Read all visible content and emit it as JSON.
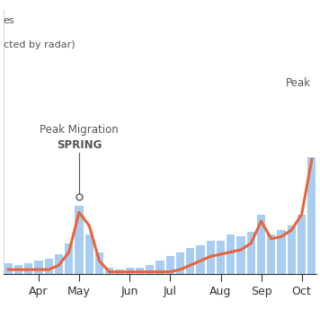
{
  "chart_data": {
    "type": "bar",
    "categories": [
      null,
      null,
      null,
      "Apr",
      null,
      null,
      null,
      "May",
      null,
      null,
      null,
      null,
      "Jun",
      null,
      null,
      null,
      "Jul",
      null,
      null,
      null,
      null,
      "Aug",
      null,
      null,
      null,
      "Sep",
      null,
      null,
      null,
      "Oct",
      null
    ],
    "series": [
      {
        "type": "bar",
        "color": "#a9cdf1",
        "values": [
          5,
          4,
          5,
          6,
          7,
          9,
          14,
          31,
          18,
          10,
          3,
          2,
          3,
          3,
          4,
          6,
          8,
          10,
          12,
          13,
          15,
          15,
          18,
          17,
          19,
          27,
          18,
          20,
          22,
          27,
          53
        ]
      },
      {
        "type": "line",
        "color": "#e8653c",
        "values": [
          2,
          2,
          2,
          2,
          2,
          4,
          10,
          28,
          22,
          6,
          1,
          1,
          1,
          1,
          1,
          1,
          1,
          2,
          4,
          6,
          8,
          9,
          10,
          11,
          14,
          24,
          16,
          17,
          20,
          27,
          52
        ]
      }
    ],
    "ylim": [
      0,
      120
    ],
    "tick_labels": "x",
    "grid": false,
    "annotations": [
      "es",
      "cted by radar)",
      "Peak Migration",
      "SPRING",
      "Peak"
    ]
  }
}
